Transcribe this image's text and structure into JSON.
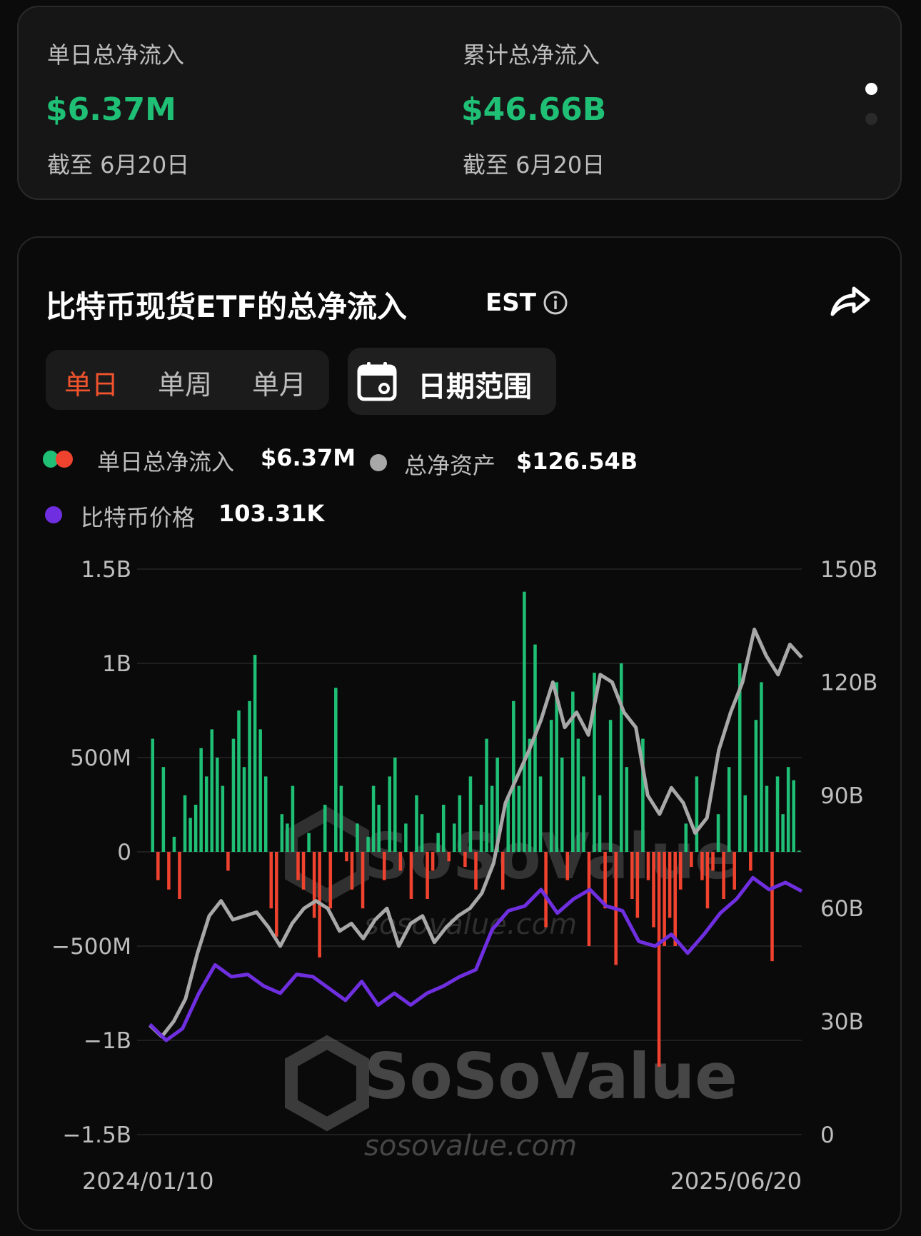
{
  "summary": {
    "daily": {
      "label": "单日总净流入",
      "value": "$6.37M",
      "date": "截至 6月20日"
    },
    "cumulative": {
      "label": "累计总净流入",
      "value": "$46.66B",
      "date": "截至 6月20日"
    },
    "pager": {
      "pages": 2,
      "active": 0
    }
  },
  "chart_card": {
    "title": "比特币现货ETF的总净流入",
    "timezone": "EST",
    "info_icon": "info-icon",
    "share_icon": "share-icon",
    "tabs": [
      {
        "label": "单日",
        "active": true
      },
      {
        "label": "单周",
        "active": false
      },
      {
        "label": "单月",
        "active": false
      }
    ],
    "date_range_label": "日期范围",
    "date_range_icon": "calendar-icon",
    "legend": [
      {
        "label": "单日总净流入",
        "value": "$6.37M",
        "colors": [
          "#1fbf75",
          "#f0432f"
        ]
      },
      {
        "label": "总净资产",
        "value": "$126.54B",
        "color": "#a8a8a8"
      },
      {
        "label": "比特币价格",
        "value": "103.31K",
        "color": "#6f2fe0"
      }
    ],
    "watermark": {
      "brand": "SoSoValue",
      "domain": "sosovalue.com"
    }
  },
  "colors": {
    "positive": "#1fbf75",
    "negative": "#f0432f",
    "accent_tab": "#f0532d",
    "net_assets": "#a8a8a8",
    "price": "#6f2fe0"
  },
  "chart_data": {
    "type": "bar+line",
    "x_labels": [
      "2024/01/10",
      "2025/06/20"
    ],
    "x_range": [
      "2024/01/10",
      "2025/06/20"
    ],
    "left_axis": {
      "ticks": [
        "1.5B",
        "1B",
        "500M",
        "0",
        "-500M",
        "-1B",
        "-1.5B"
      ],
      "range_millions": [
        -1500,
        1500
      ]
    },
    "right_axis": {
      "ticks": [
        "150B",
        "120B",
        "90B",
        "60B",
        "30B",
        "0"
      ],
      "range_billions": [
        0,
        150
      ]
    },
    "price_axis_hidden_range_k": [
      0,
      240
    ],
    "grid": true,
    "series": [
      {
        "name": "单日总净流入",
        "type": "bar",
        "unit": "M USD",
        "values": [
          600,
          -150,
          450,
          -200,
          80,
          -250,
          300,
          180,
          250,
          550,
          400,
          650,
          500,
          350,
          -100,
          600,
          750,
          450,
          800,
          1045,
          650,
          400,
          -300,
          -450,
          200,
          150,
          350,
          -150,
          -200,
          100,
          -350,
          -560,
          250,
          -300,
          870,
          350,
          -50,
          -200,
          150,
          -300,
          80,
          350,
          250,
          -150,
          400,
          500,
          -100,
          150,
          -250,
          300,
          200,
          -250,
          -100,
          100,
          250,
          -50,
          150,
          300,
          -80,
          400,
          -200,
          250,
          600,
          350,
          500,
          -200,
          300,
          800,
          350,
          1380,
          600,
          1100,
          400,
          -400,
          700,
          900,
          500,
          -150,
          850,
          600,
          400,
          -500,
          950,
          300,
          -300,
          700,
          -600,
          1000,
          450,
          -250,
          -350,
          600,
          -150,
          -400,
          -1140,
          -500,
          -350,
          -500,
          -200,
          150,
          -80,
          400,
          -150,
          -300,
          -100,
          200,
          -250,
          450,
          -200,
          1000,
          300,
          -100,
          700,
          900,
          350,
          -580,
          400,
          200,
          450,
          380,
          6.37
        ]
      },
      {
        "name": "总净资产",
        "type": "line",
        "unit": "B USD",
        "values": [
          29,
          26,
          30,
          36,
          48,
          58,
          62,
          57,
          58,
          59,
          55,
          50,
          56,
          60,
          62,
          60,
          54,
          56,
          52,
          57,
          60,
          50,
          56,
          58,
          51,
          55,
          58,
          60,
          64,
          72,
          88,
          95,
          102,
          110,
          120,
          108,
          112,
          106,
          122,
          120,
          112,
          108,
          90,
          85,
          92,
          88,
          80,
          84,
          102,
          112,
          120,
          134,
          127,
          122,
          130,
          126.54
        ]
      },
      {
        "name": "比特币价格",
        "type": "line",
        "unit": "K USD",
        "values": [
          46.8,
          40,
          45,
          60,
          72,
          67,
          68,
          63,
          60,
          68,
          67,
          62,
          57,
          65,
          55,
          60,
          55,
          60,
          63,
          67,
          70,
          87,
          95,
          97,
          104,
          94,
          100,
          104,
          97,
          95,
          82,
          80,
          85,
          77,
          85,
          94,
          100,
          109,
          104,
          107,
          103.31
        ]
      }
    ]
  }
}
